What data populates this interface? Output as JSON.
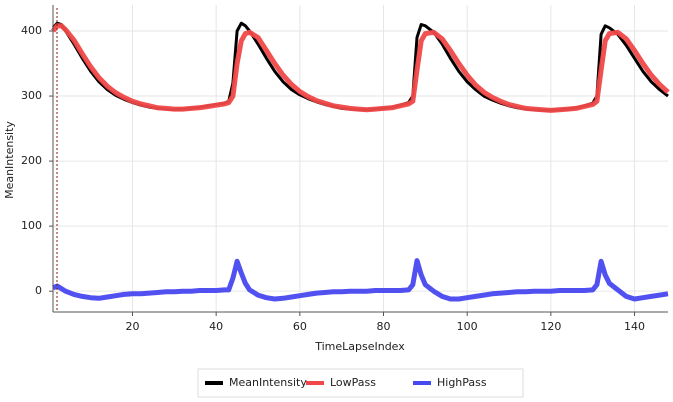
{
  "chart_data": {
    "type": "line",
    "x_label": "TimeLapseIndex",
    "y_label": "MeanIntensity",
    "x": [
      1,
      2,
      3,
      4,
      6,
      8,
      10,
      12,
      14,
      16,
      18,
      20,
      22,
      24,
      26,
      28,
      30,
      32,
      34,
      36,
      38,
      40,
      42,
      43,
      44,
      45,
      46,
      47,
      48,
      50,
      52,
      54,
      56,
      58,
      60,
      62,
      64,
      66,
      68,
      70,
      72,
      74,
      76,
      78,
      80,
      82,
      84,
      86,
      87,
      88,
      89,
      90,
      92,
      94,
      96,
      98,
      100,
      102,
      104,
      106,
      108,
      110,
      112,
      114,
      116,
      118,
      120,
      122,
      124,
      126,
      128,
      130,
      131,
      132,
      133,
      134,
      136,
      138,
      140,
      142,
      144,
      146,
      148
    ],
    "series": [
      {
        "name": "MeanIntensity",
        "color": "#000000",
        "values": [
          405,
          412,
          410,
          400,
          380,
          358,
          338,
          322,
          310,
          301,
          295,
          290,
          286,
          283,
          281,
          280,
          279,
          280,
          281,
          283,
          285,
          287,
          289,
          292,
          320,
          400,
          412,
          408,
          400,
          380,
          358,
          338,
          322,
          310,
          302,
          296,
          291,
          287,
          284,
          281,
          280,
          279,
          279,
          280,
          281,
          283,
          286,
          290,
          300,
          390,
          410,
          408,
          398,
          380,
          358,
          338,
          322,
          310,
          300,
          294,
          289,
          285,
          282,
          280,
          279,
          278,
          278,
          279,
          280,
          282,
          285,
          289,
          300,
          395,
          408,
          405,
          395,
          378,
          358,
          338,
          322,
          310,
          300
        ]
      },
      {
        "name": "LowPass",
        "color": "#f04848",
        "values": [
          400,
          408,
          408,
          402,
          386,
          365,
          345,
          328,
          315,
          305,
          298,
          292,
          288,
          285,
          282,
          281,
          280,
          280,
          281,
          282,
          284,
          286,
          288,
          290,
          300,
          350,
          385,
          396,
          398,
          390,
          370,
          350,
          332,
          318,
          307,
          299,
          293,
          289,
          285,
          283,
          281,
          280,
          279,
          280,
          281,
          282,
          285,
          288,
          292,
          340,
          385,
          396,
          398,
          388,
          370,
          350,
          332,
          317,
          306,
          298,
          292,
          287,
          284,
          281,
          280,
          279,
          278,
          279,
          280,
          281,
          284,
          287,
          292,
          340,
          385,
          396,
          398,
          388,
          370,
          350,
          332,
          318,
          306
        ]
      },
      {
        "name": "HighPass",
        "color": "#4848f0",
        "values": [
          5,
          8,
          4,
          0,
          -5,
          -8,
          -10,
          -11,
          -9,
          -7,
          -5,
          -4,
          -4,
          -3,
          -2,
          -1,
          -1,
          0,
          0,
          1,
          1,
          1,
          2,
          2,
          20,
          46,
          28,
          12,
          2,
          -6,
          -10,
          -12,
          -11,
          -9,
          -7,
          -5,
          -3,
          -2,
          -1,
          -1,
          0,
          0,
          0,
          1,
          1,
          1,
          1,
          2,
          10,
          47,
          25,
          10,
          0,
          -8,
          -12,
          -12,
          -10,
          -8,
          -6,
          -4,
          -3,
          -2,
          -1,
          -1,
          0,
          0,
          0,
          1,
          1,
          1,
          1,
          2,
          10,
          46,
          25,
          12,
          2,
          -8,
          -12,
          -10,
          -8,
          -6,
          -4
        ]
      }
    ],
    "xlim": [
      1,
      148
    ],
    "ylim": [
      -32,
      440
    ],
    "xticks": [
      20,
      40,
      60,
      80,
      100,
      120,
      140
    ],
    "yticks": [
      0,
      100,
      200,
      300,
      400
    ],
    "grid": true,
    "legend": "bottom"
  }
}
